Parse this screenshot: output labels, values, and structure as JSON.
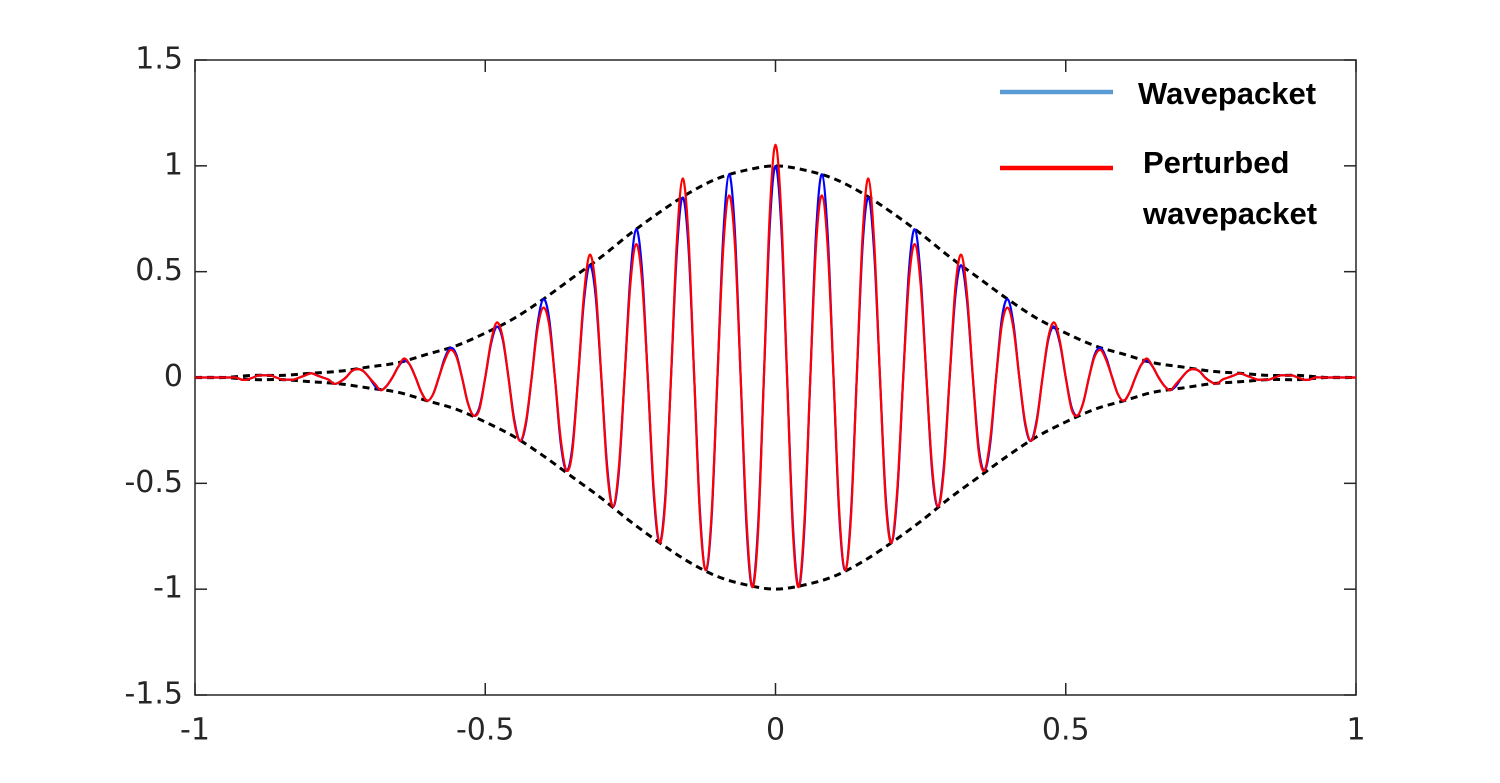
{
  "chart_data": {
    "type": "line",
    "x": [
      -1,
      -0.99,
      -0.98,
      -0.97,
      -0.96,
      -0.95,
      -0.94,
      -0.93,
      -0.92,
      -0.91,
      -0.9,
      -0.89,
      -0.88,
      -0.87,
      -0.86,
      -0.85,
      -0.84,
      -0.83,
      -0.82,
      -0.81,
      -0.8,
      -0.79,
      -0.78,
      -0.77,
      -0.76,
      -0.75,
      -0.74,
      -0.73,
      -0.72,
      -0.71,
      -0.7,
      -0.69,
      -0.68,
      -0.67,
      -0.66,
      -0.65,
      -0.64,
      -0.63,
      -0.62,
      -0.61,
      -0.6,
      -0.59,
      -0.58,
      -0.57,
      -0.56,
      -0.55,
      -0.54,
      -0.53,
      -0.52,
      -0.51,
      -0.5,
      -0.49,
      -0.48,
      -0.47,
      -0.46,
      -0.45,
      -0.44,
      -0.43,
      -0.42,
      -0.41,
      -0.4,
      -0.39,
      -0.38,
      -0.37,
      -0.36,
      -0.35,
      -0.34,
      -0.33,
      -0.32,
      -0.31,
      -0.3,
      -0.29,
      -0.28,
      -0.27,
      -0.26,
      -0.25,
      -0.24,
      -0.23,
      -0.22,
      -0.21,
      -0.2,
      -0.19,
      -0.18,
      -0.17,
      -0.16,
      -0.15,
      -0.14,
      -0.13,
      -0.12,
      -0.11,
      -0.1,
      -0.09,
      -0.08,
      -0.07,
      -0.06,
      -0.05,
      -0.04,
      -0.03,
      -0.02,
      -0.01,
      0,
      0.01,
      0.02,
      0.03,
      0.04,
      0.05,
      0.06,
      0.07,
      0.08,
      0.09,
      0.1,
      0.11,
      0.12,
      0.13,
      0.14,
      0.15,
      0.16,
      0.17,
      0.18,
      0.19,
      0.2,
      0.21,
      0.22,
      0.23,
      0.24,
      0.25,
      0.26,
      0.27,
      0.28,
      0.29,
      0.3,
      0.31,
      0.32,
      0.33,
      0.34,
      0.35,
      0.36,
      0.37,
      0.38,
      0.39,
      0.4,
      0.41,
      0.42,
      0.43,
      0.44,
      0.45,
      0.46,
      0.47,
      0.48,
      0.49,
      0.5,
      0.51,
      0.52,
      0.53,
      0.54,
      0.55,
      0.56,
      0.57,
      0.58,
      0.59,
      0.6,
      0.61,
      0.62,
      0.63,
      0.64,
      0.65,
      0.66,
      0.67,
      0.68,
      0.69,
      0.7,
      0.71,
      0.72,
      0.73,
      0.74,
      0.75,
      0.76,
      0.77,
      0.78,
      0.79,
      0.8,
      0.81,
      0.82,
      0.83,
      0.84,
      0.85,
      0.86,
      0.87,
      0.88,
      0.89,
      0.9,
      0.91,
      0.92,
      0.93,
      0.94,
      0.95,
      0.96,
      0.97,
      0.98,
      0.99,
      1
    ],
    "series": [
      {
        "name": "Wavepacket",
        "color": "#0000ff",
        "legend_color": "#5b9bd5",
        "values": [
          0,
          0,
          0,
          0,
          0,
          0,
          0,
          0,
          -0.01,
          -0.01,
          0,
          0.01,
          0.01,
          0.01,
          0,
          -0.01,
          -0.01,
          -0.01,
          0,
          0.01,
          0.02,
          0.01,
          0,
          -0.01,
          -0.03,
          -0.02,
          0,
          0.03,
          0.04,
          0.03,
          0,
          -0.04,
          -0.06,
          -0.04,
          0,
          0.05,
          0.08,
          0.06,
          0,
          -0.07,
          -0.11,
          -0.08,
          0,
          0.09,
          0.14,
          0.11,
          0,
          -0.12,
          -0.18,
          -0.14,
          0,
          0.16,
          0.24,
          0.18,
          0,
          -0.2,
          -0.3,
          -0.22,
          0,
          0.25,
          0.37,
          0.28,
          0,
          -0.31,
          -0.44,
          -0.33,
          0,
          0.36,
          0.53,
          0.39,
          0,
          -0.42,
          -0.61,
          -0.45,
          0,
          0.48,
          0.7,
          0.51,
          0,
          -0.54,
          -0.78,
          -0.57,
          0,
          0.59,
          0.85,
          0.62,
          0,
          -0.64,
          -0.91,
          -0.66,
          0,
          0.67,
          0.96,
          0.69,
          0,
          -0.7,
          -0.99,
          -0.7,
          0,
          0.71,
          1,
          0.71,
          0,
          -0.7,
          -0.99,
          -0.7,
          0,
          0.69,
          0.96,
          0.67,
          0,
          -0.66,
          -0.91,
          -0.64,
          0,
          0.62,
          0.85,
          0.59,
          0,
          -0.57,
          -0.78,
          -0.54,
          0,
          0.51,
          0.7,
          0.48,
          0,
          -0.45,
          -0.61,
          -0.42,
          0,
          0.39,
          0.53,
          0.36,
          0,
          -0.33,
          -0.44,
          -0.31,
          0,
          0.28,
          0.37,
          0.25,
          0,
          -0.22,
          -0.3,
          -0.2,
          0,
          0.18,
          0.24,
          0.16,
          0,
          -0.14,
          -0.18,
          -0.12,
          0,
          0.11,
          0.14,
          0.09,
          0,
          -0.08,
          -0.11,
          -0.07,
          0,
          0.06,
          0.08,
          0.05,
          0,
          -0.04,
          -0.06,
          -0.04,
          0,
          0.03,
          0.04,
          0.03,
          0,
          -0.02,
          -0.03,
          -0.01,
          0,
          0.01,
          0.02,
          0.01,
          0,
          -0.01,
          -0.01,
          -0.01,
          0,
          0.01,
          0.01,
          0.01,
          0,
          -0.01,
          -0.01,
          0,
          0,
          0,
          0,
          0,
          0,
          0,
          0
        ]
      },
      {
        "name": "Perturbed wavepacket",
        "color": "#ff0000",
        "legend_color": "#ff0000",
        "values": [
          0,
          0,
          0,
          0,
          0,
          0,
          0,
          0,
          -0.01,
          -0.01,
          0,
          0.01,
          0.01,
          0.01,
          0,
          -0.01,
          -0.01,
          -0.01,
          0,
          0.01,
          0.02,
          0.01,
          0,
          -0.01,
          -0.03,
          -0.02,
          0,
          0.03,
          0.04,
          0.03,
          0,
          -0.03,
          -0.06,
          -0.04,
          0,
          0.05,
          0.09,
          0.06,
          0,
          -0.07,
          -0.11,
          -0.08,
          0,
          0.08,
          0.13,
          0.1,
          0,
          -0.12,
          -0.18,
          -0.15,
          0,
          0.17,
          0.26,
          0.19,
          0,
          -0.21,
          -0.3,
          -0.21,
          0,
          0.23,
          0.33,
          0.25,
          0,
          -0.29,
          -0.44,
          -0.35,
          0,
          0.39,
          0.58,
          0.43,
          0,
          -0.44,
          -0.61,
          -0.43,
          0,
          0.44,
          0.63,
          0.46,
          0,
          -0.52,
          -0.78,
          -0.59,
          0,
          0.64,
          0.94,
          0.67,
          0,
          -0.66,
          -0.91,
          -0.64,
          0,
          0.61,
          0.86,
          0.63,
          0,
          -0.67,
          -0.99,
          -0.73,
          0,
          0.77,
          1.1,
          0.77,
          0,
          -0.73,
          -0.99,
          -0.67,
          0,
          0.63,
          0.86,
          0.61,
          0,
          -0.64,
          -0.91,
          -0.66,
          0,
          0.67,
          0.94,
          0.64,
          0,
          -0.59,
          -0.78,
          -0.52,
          0,
          0.46,
          0.63,
          0.44,
          0,
          -0.43,
          -0.61,
          -0.44,
          0,
          0.43,
          0.58,
          0.39,
          0,
          -0.35,
          -0.44,
          -0.29,
          0,
          0.25,
          0.33,
          0.23,
          0,
          -0.21,
          -0.3,
          -0.21,
          0,
          0.19,
          0.26,
          0.17,
          0,
          -0.15,
          -0.18,
          -0.12,
          0,
          0.1,
          0.13,
          0.08,
          0,
          -0.08,
          -0.11,
          -0.07,
          0,
          0.06,
          0.09,
          0.05,
          0,
          -0.04,
          -0.06,
          -0.03,
          0,
          0.03,
          0.04,
          0.03,
          0,
          -0.02,
          -0.03,
          -0.01,
          0,
          0.01,
          0.02,
          0.01,
          0,
          -0.01,
          -0.01,
          -0.01,
          0,
          0.01,
          0.01,
          0.01,
          0,
          -0.01,
          -0.01,
          0,
          0,
          0,
          0,
          0,
          0,
          0,
          0
        ]
      },
      {
        "color": "#000000",
        "dashed": true,
        "x": [
          -1,
          -0.95,
          -0.9,
          -0.85,
          -0.8,
          -0.75,
          -0.7,
          -0.65,
          -0.6,
          -0.55,
          -0.5,
          -0.45,
          -0.4,
          -0.35,
          -0.3,
          -0.25,
          -0.2,
          -0.15,
          -0.1,
          -0.05,
          0,
          0.05,
          0.1,
          0.15,
          0.2,
          0.25,
          0.3,
          0.35,
          0.4,
          0.45,
          0.5,
          0.55,
          0.6,
          0.65,
          0.7,
          0.75,
          0.8,
          0.85,
          0.9,
          0.95,
          1
        ],
        "values": [
          0,
          0,
          0.01,
          0.01,
          0.02,
          0.03,
          0.05,
          0.07,
          0.11,
          0.15,
          0.21,
          0.28,
          0.37,
          0.47,
          0.57,
          0.68,
          0.78,
          0.87,
          0.94,
          0.98,
          1,
          0.98,
          0.94,
          0.87,
          0.78,
          0.68,
          0.57,
          0.47,
          0.37,
          0.28,
          0.21,
          0.15,
          0.11,
          0.07,
          0.05,
          0.03,
          0.02,
          0.01,
          0.01,
          0,
          0
        ]
      },
      {
        "color": "#000000",
        "dashed": true,
        "x": [
          -1,
          -0.95,
          -0.9,
          -0.85,
          -0.8,
          -0.75,
          -0.7,
          -0.65,
          -0.6,
          -0.55,
          -0.5,
          -0.45,
          -0.4,
          -0.35,
          -0.3,
          -0.25,
          -0.2,
          -0.15,
          -0.1,
          -0.05,
          0,
          0.05,
          0.1,
          0.15,
          0.2,
          0.25,
          0.3,
          0.35,
          0.4,
          0.45,
          0.5,
          0.55,
          0.6,
          0.65,
          0.7,
          0.75,
          0.8,
          0.85,
          0.9,
          0.95,
          1
        ],
        "values": [
          0,
          0,
          -0.01,
          -0.01,
          -0.02,
          -0.03,
          -0.05,
          -0.07,
          -0.11,
          -0.15,
          -0.21,
          -0.28,
          -0.37,
          -0.47,
          -0.57,
          -0.68,
          -0.78,
          -0.87,
          -0.94,
          -0.98,
          -1,
          -0.98,
          -0.94,
          -0.87,
          -0.78,
          -0.68,
          -0.57,
          -0.47,
          -0.37,
          -0.28,
          -0.21,
          -0.15,
          -0.11,
          -0.07,
          -0.05,
          -0.03,
          -0.02,
          -0.01,
          -0.01,
          0,
          0
        ]
      }
    ],
    "xlim": [
      -1,
      1
    ],
    "xticks": [
      -1,
      -0.5,
      0,
      0.5,
      1
    ],
    "ylim": [
      -1.5,
      1.5
    ],
    "yticks": [
      -1.5,
      -1,
      -0.5,
      0,
      0.5,
      1,
      1.5
    ],
    "grid": false,
    "legend": "upper right"
  }
}
